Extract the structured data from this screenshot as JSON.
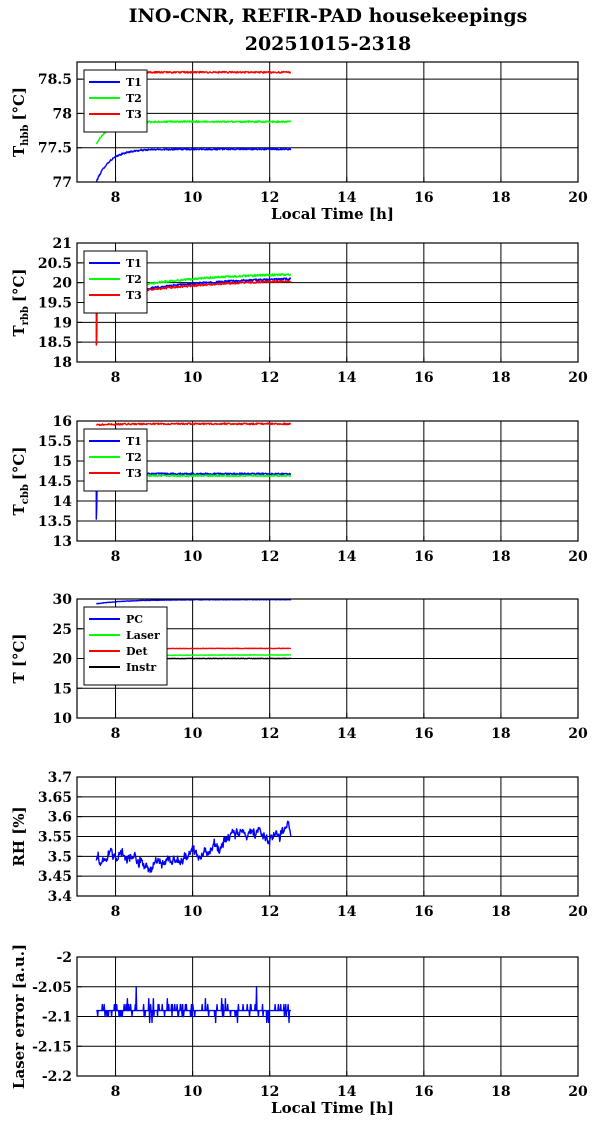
{
  "title": "INO-CNR, REFIR-PAD housekeepings",
  "subtitle": "20251015-2318",
  "colors": {
    "blue": "#0000ff",
    "green": "#00ff00",
    "red": "#ff0000",
    "black": "#000000"
  },
  "chart_data": [
    {
      "type": "line",
      "id": "hbb",
      "ylabel_main": "T",
      "ylabel_sub": "hbb",
      "ylabel_unit": "[°C]",
      "xlabel": "Local Time [h]",
      "xlim": [
        7,
        20
      ],
      "ylim": [
        77,
        78.75
      ],
      "xticks": [
        8,
        10,
        12,
        14,
        16,
        18,
        20
      ],
      "yticks": [
        77,
        77.5,
        78,
        78.5
      ],
      "ytick_labels": [
        "77",
        "77.5",
        "78",
        "78.5"
      ],
      "grid": true,
      "legend": "top-left",
      "x_range": [
        7.5,
        12.55
      ],
      "noise": 0.012,
      "series": [
        {
          "name": "T1",
          "color": "#0000ff",
          "start": 77.0,
          "end": 77.48,
          "tau": 0.35
        },
        {
          "name": "T2",
          "color": "#00ff00",
          "start": 77.55,
          "end": 77.88,
          "tau": 0.3
        },
        {
          "name": "T3",
          "color": "#ff0000",
          "start": 78.6,
          "end": 78.6,
          "tau": 0.3
        }
      ]
    },
    {
      "type": "line",
      "id": "rbb",
      "ylabel_main": "T",
      "ylabel_sub": "rbb",
      "ylabel_unit": "[°C]",
      "xlabel": "",
      "xlim": [
        7,
        20
      ],
      "ylim": [
        18,
        21
      ],
      "xticks": [
        8,
        10,
        12,
        14,
        16,
        18,
        20
      ],
      "yticks": [
        18,
        18.5,
        19,
        19.5,
        20,
        20.5,
        21
      ],
      "ytick_labels": [
        "18",
        "18.5",
        "19",
        "19.5",
        "20",
        "20.5",
        "21"
      ],
      "grid": true,
      "legend": "top-left",
      "x_range": [
        7.5,
        12.55
      ],
      "noise": 0.025,
      "series": [
        {
          "name": "T1",
          "color": "#0000ff",
          "start": 19.6,
          "end": 20.15,
          "tau": 2.2
        },
        {
          "name": "T2",
          "color": "#00ff00",
          "start": 19.7,
          "end": 20.25,
          "tau": 2.0
        },
        {
          "name": "T3",
          "color": "#ff0000",
          "start": 18.45,
          "end": 20.1,
          "tau": 2.4,
          "spike_to": 19.6
        }
      ]
    },
    {
      "type": "line",
      "id": "cbb",
      "ylabel_main": "T",
      "ylabel_sub": "cbb",
      "ylabel_unit": "[°C]",
      "xlabel": "",
      "xlim": [
        7,
        20
      ],
      "ylim": [
        13,
        16
      ],
      "xticks": [
        8,
        10,
        12,
        14,
        16,
        18,
        20
      ],
      "yticks": [
        13,
        13.5,
        14,
        14.5,
        15,
        15.5,
        16
      ],
      "ytick_labels": [
        "13",
        "13.5",
        "14",
        "14.5",
        "15",
        "15.5",
        "16"
      ],
      "grid": true,
      "legend": "top-left",
      "x_range": [
        7.5,
        12.55
      ],
      "noise": 0.02,
      "series": [
        {
          "name": "T1",
          "color": "#0000ff",
          "start": 13.55,
          "end": 14.68,
          "tau": 0.05,
          "spike_to": 14.68
        },
        {
          "name": "T2",
          "color": "#00ff00",
          "start": 14.4,
          "end": 14.63,
          "tau": 0.05,
          "spike_to": 14.63
        },
        {
          "name": "T3",
          "color": "#ff0000",
          "start": 15.9,
          "end": 15.93,
          "tau": 0.5
        }
      ]
    },
    {
      "type": "line",
      "id": "temps",
      "ylabel_main": "T [°C]",
      "ylabel_sub": "",
      "ylabel_unit": "",
      "xlabel": "",
      "xlim": [
        7,
        20
      ],
      "ylim": [
        10,
        30
      ],
      "xticks": [
        8,
        10,
        12,
        14,
        16,
        18,
        20
      ],
      "yticks": [
        10,
        15,
        20,
        25,
        30
      ],
      "ytick_labels": [
        "10",
        "15",
        "20",
        "25",
        "30"
      ],
      "grid": true,
      "legend": "top-left",
      "x_range": [
        7.5,
        12.55
      ],
      "noise": 0.04,
      "series": [
        {
          "name": "PC",
          "color": "#0000ff",
          "start": 29.2,
          "end": 29.9,
          "tau": 0.8
        },
        {
          "name": "Laser",
          "color": "#00ff00",
          "start": 20.2,
          "end": 20.6,
          "tau": 1.0
        },
        {
          "name": "Det",
          "color": "#ff0000",
          "start": 21.5,
          "end": 21.7,
          "tau": 1.0
        },
        {
          "name": "Instr",
          "color": "#000000",
          "start": 20.0,
          "end": 20.0,
          "tau": 1.0
        }
      ]
    },
    {
      "type": "line",
      "id": "rh",
      "ylabel_main": "RH [%]",
      "ylabel_sub": "",
      "ylabel_unit": "",
      "xlabel": "",
      "xlim": [
        7,
        20
      ],
      "ylim": [
        3.4,
        3.7
      ],
      "xticks": [
        8,
        10,
        12,
        14,
        16,
        18,
        20
      ],
      "yticks": [
        3.4,
        3.45,
        3.5,
        3.55,
        3.6,
        3.65,
        3.7
      ],
      "ytick_labels": [
        "3.4",
        "3.45",
        "3.5",
        "3.55",
        "3.6",
        "3.65",
        "3.7"
      ],
      "grid": true,
      "legend": "none",
      "x_range": [
        7.5,
        12.55
      ],
      "noise": 0.02,
      "series": [
        {
          "name": "",
          "color": "#0000ff",
          "anchors": [
            [
              7.5,
              3.5
            ],
            [
              8.2,
              3.5
            ],
            [
              8.8,
              3.48
            ],
            [
              9.5,
              3.48
            ],
            [
              10.2,
              3.51
            ],
            [
              10.8,
              3.54
            ],
            [
              11.5,
              3.56
            ],
            [
              12.0,
              3.55
            ],
            [
              12.55,
              3.56
            ]
          ]
        }
      ]
    },
    {
      "type": "line",
      "id": "laser",
      "ylabel_main": "Laser error [a.u.]",
      "ylabel_sub": "",
      "ylabel_unit": "",
      "xlabel": "Local Time [h]",
      "xlim": [
        7,
        20
      ],
      "ylim": [
        -2.2,
        -2.0
      ],
      "xticks": [
        8,
        10,
        12,
        14,
        16,
        18,
        20
      ],
      "yticks": [
        -2.2,
        -2.15,
        -2.1,
        -2.05,
        -2.0
      ],
      "ytick_labels": [
        "-2.2",
        "-2.15",
        "-2.1",
        "-2.05",
        "-2"
      ],
      "grid": true,
      "legend": "none",
      "x_range": [
        7.5,
        12.55
      ],
      "quantized": true,
      "series": [
        {
          "name": "",
          "color": "#0000ff",
          "base": -2.09,
          "step": 0.01
        }
      ]
    }
  ]
}
